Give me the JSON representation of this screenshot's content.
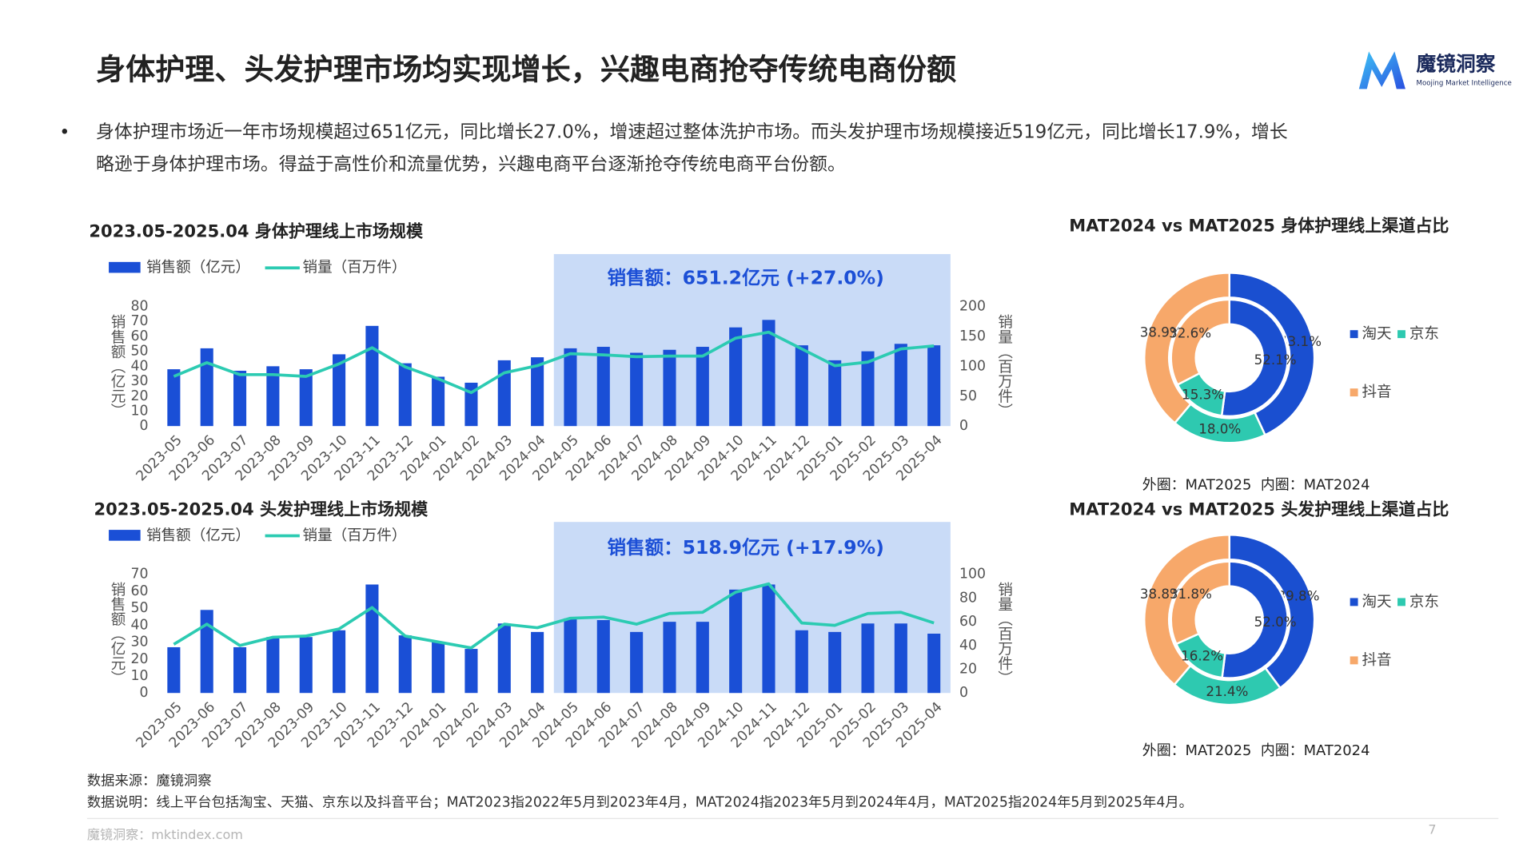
{
  "header": {
    "title": "身体护理、头发护理市场均实现增长，兴趣电商抢夺传统电商份额",
    "logo_name": "魔镜洞察",
    "logo_tagline": "Moojing Market Intelligence"
  },
  "summary": {
    "lines": [
      "身体护理市场近一年市场规模超过651亿元，同比增长27.0%，增速超过整体洗护市场。而头发护理市场规模接近519亿元，同比增长17.9%，增长",
      "略逊于身体护理市场。得益于高性价和流量优势，兴趣电商平台逐渐抢夺传统电商平台份额。"
    ]
  },
  "chart_data": [
    {
      "type": "combo",
      "title": "2023.05-2025.04 身体护理线上市场规模",
      "annotation": "销售额：651.2亿元 (+27.0%)",
      "categories": [
        "2023-05",
        "2023-06",
        "2023-07",
        "2023-08",
        "2023-09",
        "2023-10",
        "2023-11",
        "2023-12",
        "2024-01",
        "2024-02",
        "2024-03",
        "2024-04",
        "2024-05",
        "2024-06",
        "2024-07",
        "2024-08",
        "2024-09",
        "2024-10",
        "2024-11",
        "2024-12",
        "2025-01",
        "2025-02",
        "2025-03",
        "2025-04"
      ],
      "series": [
        {
          "name": "销售额（亿元）",
          "kind": "bar",
          "color": "#1a4fd6",
          "values": [
            38,
            52,
            37,
            40,
            38,
            48,
            67,
            42,
            33,
            29,
            44,
            46,
            52,
            53,
            49,
            51,
            53,
            66,
            71,
            54,
            44,
            50,
            55,
            54
          ]
        },
        {
          "name": "销量（百万件）",
          "kind": "line",
          "axis": "y2",
          "color": "#2ccbb2",
          "values": [
            83,
            106,
            86,
            86,
            83,
            104,
            131,
            99,
            79,
            56,
            89,
            101,
            121,
            119,
            116,
            117,
            117,
            147,
            157,
            129,
            101,
            107,
            129,
            134
          ]
        }
      ],
      "ylabel": "销售额（亿元）",
      "y2label": "销量（百万件）",
      "ylim": [
        0,
        80
      ],
      "yticks": [
        0,
        10,
        20,
        30,
        40,
        50,
        60,
        70,
        80
      ],
      "y2lim": [
        0,
        200
      ],
      "y2ticks": [
        0,
        50,
        100,
        150,
        200
      ]
    },
    {
      "type": "combo",
      "title": "2023.05-2025.04 头发护理线上市场规模",
      "annotation": "销售额：518.9亿元 (+17.9%)",
      "categories": [
        "2023-05",
        "2023-06",
        "2023-07",
        "2023-08",
        "2023-09",
        "2023-10",
        "2023-11",
        "2023-12",
        "2024-01",
        "2024-02",
        "2024-03",
        "2024-04",
        "2024-05",
        "2024-06",
        "2024-07",
        "2024-08",
        "2024-09",
        "2024-10",
        "2024-11",
        "2024-12",
        "2025-01",
        "2025-02",
        "2025-03",
        "2025-04"
      ],
      "series": [
        {
          "name": "销售额（亿元）",
          "kind": "bar",
          "color": "#1a4fd6",
          "values": [
            27,
            49,
            27,
            33,
            33,
            37,
            64,
            34,
            30,
            26,
            41,
            36,
            44,
            43,
            36,
            42,
            42,
            61,
            64,
            37,
            36,
            41,
            41,
            35
          ]
        },
        {
          "name": "销量（百万件）",
          "kind": "line",
          "axis": "y2",
          "color": "#2ccbb2",
          "values": [
            41,
            58,
            40,
            47,
            48,
            54,
            72,
            48,
            43,
            38,
            58,
            55,
            63,
            64,
            58,
            67,
            68,
            85,
            92,
            59,
            57,
            67,
            68,
            59
          ]
        }
      ],
      "ylabel": "销售额（亿元）",
      "y2label": "销量（百万件）",
      "ylim": [
        0,
        70
      ],
      "yticks": [
        0,
        10,
        20,
        30,
        40,
        50,
        60,
        70
      ],
      "y2lim": [
        0,
        100
      ],
      "y2ticks": [
        0,
        20,
        40,
        60,
        80,
        100
      ]
    },
    {
      "type": "donut",
      "title": "MAT2024 vs MAT2025 身体护理线上渠道占比",
      "caption": "外圈：MAT2025  内圈：MAT2024",
      "categories": [
        "淘天",
        "京东",
        "抖音"
      ],
      "colors": [
        "#1a4fd0",
        "#2ec9b0",
        "#f7a86a"
      ],
      "outer_values": [
        43.1,
        18.0,
        38.9
      ],
      "outer_value_labels": [
        "43.1%",
        "18.0%",
        "38.9%"
      ],
      "inner_values": [
        52.1,
        15.3,
        32.6
      ],
      "inner_value_labels": [
        "52.1%",
        "15.3%",
        "32.6%"
      ]
    },
    {
      "type": "donut",
      "title": "MAT2024 vs MAT2025 头发护理线上渠道占比",
      "caption": "外圈：MAT2025  内圈：MAT2024",
      "categories": [
        "淘天",
        "京东",
        "抖音"
      ],
      "colors": [
        "#1a4fd0",
        "#2ec9b0",
        "#f7a86a"
      ],
      "outer_values": [
        39.8,
        21.4,
        38.8
      ],
      "outer_value_labels": [
        "39.8%",
        "21.4%",
        "38.8%"
      ],
      "inner_values": [
        52.0,
        16.2,
        31.8
      ],
      "inner_value_labels": [
        "52.0%",
        "16.2%",
        "31.8%"
      ]
    }
  ],
  "footer": {
    "source": "数据来源：魔镜洞察",
    "note": "数据说明：线上平台包括淘宝、天猫、京东以及抖音平台；MAT2023指2022年5月到2023年4月，MAT2024指2023年5月到2024年4月，MAT2025指2024年5月到2025年4月。",
    "site": "魔镜洞察：mktindex.com",
    "page": 7
  }
}
